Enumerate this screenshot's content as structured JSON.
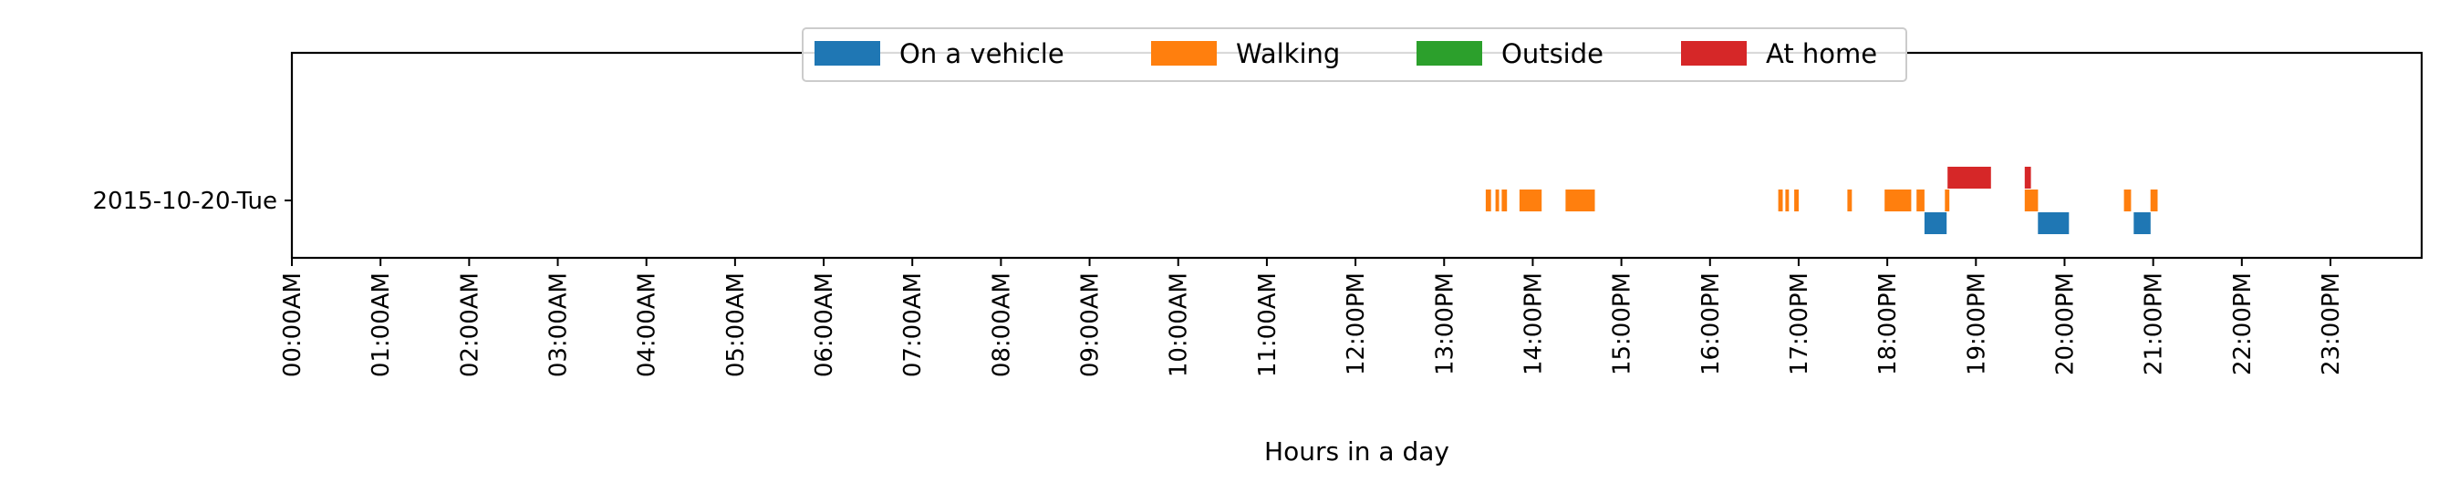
{
  "chart_data": {
    "type": "bar",
    "orientation": "horizontal-timeline",
    "title": "",
    "xlabel": "Hours in a day",
    "ylabel": "",
    "xlim": [
      0,
      24
    ],
    "x_ticks": [
      "00:00AM",
      "01:00AM",
      "02:00AM",
      "03:00AM",
      "04:00AM",
      "05:00AM",
      "06:00AM",
      "07:00AM",
      "08:00AM",
      "09:00AM",
      "10:00AM",
      "11:00AM",
      "12:00PM",
      "13:00PM",
      "14:00PM",
      "15:00PM",
      "16:00PM",
      "17:00PM",
      "18:00PM",
      "19:00PM",
      "20:00PM",
      "21:00PM",
      "22:00PM",
      "23:00PM"
    ],
    "categories": [
      "2015-10-20-Tue"
    ],
    "grid": false,
    "legend_position": "top-center",
    "series": [
      {
        "name": "On a vehicle",
        "color": "#1f77b4",
        "lane": -1,
        "intervals": [
          [
            18.42,
            18.67
          ],
          [
            19.7,
            20.05
          ],
          [
            20.78,
            20.97
          ]
        ]
      },
      {
        "name": "Walking",
        "color": "#ff7f0e",
        "lane": 0,
        "intervals": [
          [
            13.47,
            13.53
          ],
          [
            13.58,
            13.62
          ],
          [
            13.65,
            13.71
          ],
          [
            13.85,
            14.1
          ],
          [
            14.37,
            14.7
          ],
          [
            16.77,
            16.82
          ],
          [
            16.85,
            16.89
          ],
          [
            16.95,
            17.0
          ],
          [
            17.55,
            17.6
          ],
          [
            17.97,
            18.27
          ],
          [
            18.33,
            18.42
          ],
          [
            18.65,
            18.7
          ],
          [
            19.55,
            19.7
          ],
          [
            20.67,
            20.75
          ],
          [
            20.97,
            21.05
          ]
        ]
      },
      {
        "name": "Outside",
        "color": "#2ca02c",
        "lane": 0,
        "intervals": []
      },
      {
        "name": "At home",
        "color": "#d62728",
        "lane": 1,
        "intervals": [
          [
            18.68,
            19.17
          ],
          [
            19.55,
            19.62
          ]
        ]
      }
    ]
  }
}
